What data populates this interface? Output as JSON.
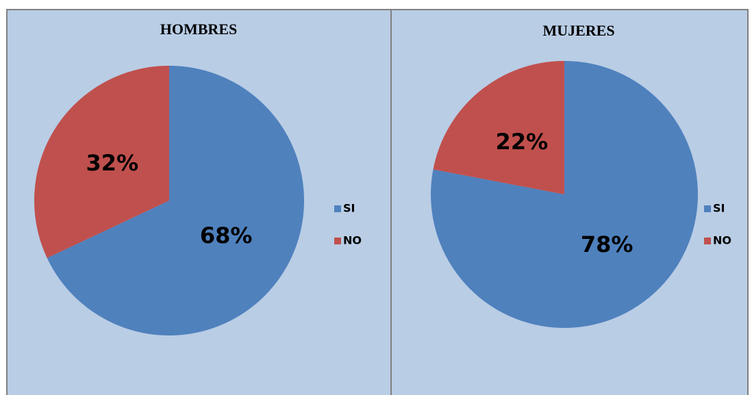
{
  "chart_data": [
    {
      "type": "pie",
      "title": "HOMBRES",
      "categories": [
        "SI",
        "NO"
      ],
      "values": [
        68,
        32
      ],
      "value_labels": [
        "68%",
        "32%"
      ],
      "colors": [
        "#4f81bd",
        "#c0504d"
      ],
      "legend": "right"
    },
    {
      "type": "pie",
      "title": "MUJERES",
      "categories": [
        "SI",
        "NO"
      ],
      "values": [
        78,
        22
      ],
      "value_labels": [
        "78%",
        "22%"
      ],
      "colors": [
        "#4f81bd",
        "#c0504d"
      ],
      "legend": "right"
    }
  ]
}
